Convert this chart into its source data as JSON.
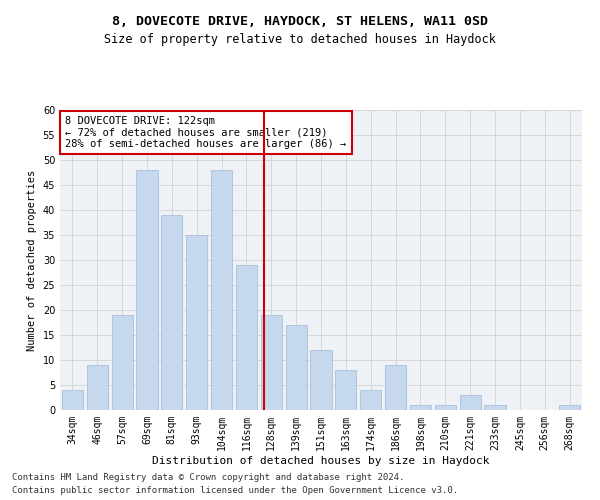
{
  "title1": "8, DOVECOTE DRIVE, HAYDOCK, ST HELENS, WA11 0SD",
  "title2": "Size of property relative to detached houses in Haydock",
  "xlabel": "Distribution of detached houses by size in Haydock",
  "ylabel": "Number of detached properties",
  "categories": [
    "34sqm",
    "46sqm",
    "57sqm",
    "69sqm",
    "81sqm",
    "93sqm",
    "104sqm",
    "116sqm",
    "128sqm",
    "139sqm",
    "151sqm",
    "163sqm",
    "174sqm",
    "186sqm",
    "198sqm",
    "210sqm",
    "221sqm",
    "233sqm",
    "245sqm",
    "256sqm",
    "268sqm"
  ],
  "values": [
    4,
    9,
    19,
    48,
    39,
    35,
    48,
    29,
    19,
    17,
    12,
    8,
    4,
    9,
    1,
    1,
    3,
    1,
    0,
    0,
    1
  ],
  "bar_color": "#c5d8ed",
  "bar_edgecolor": "#a0b8d8",
  "vline_x": 7.72,
  "vline_color": "#cc0000",
  "annotation_line1": "8 DOVECOTE DRIVE: 122sqm",
  "annotation_line2": "← 72% of detached houses are smaller (219)",
  "annotation_line3": "28% of semi-detached houses are larger (86) →",
  "annotation_box_color": "#cc0000",
  "ylim": [
    0,
    60
  ],
  "yticks": [
    0,
    5,
    10,
    15,
    20,
    25,
    30,
    35,
    40,
    45,
    50,
    55,
    60
  ],
  "grid_color": "#cccccc",
  "bg_color": "#eef2f7",
  "footer1": "Contains HM Land Registry data © Crown copyright and database right 2024.",
  "footer2": "Contains public sector information licensed under the Open Government Licence v3.0.",
  "title1_fontsize": 9.5,
  "title2_fontsize": 8.5,
  "xlabel_fontsize": 8,
  "ylabel_fontsize": 7.5,
  "tick_fontsize": 7,
  "annotation_fontsize": 7.5,
  "footer_fontsize": 6.5
}
